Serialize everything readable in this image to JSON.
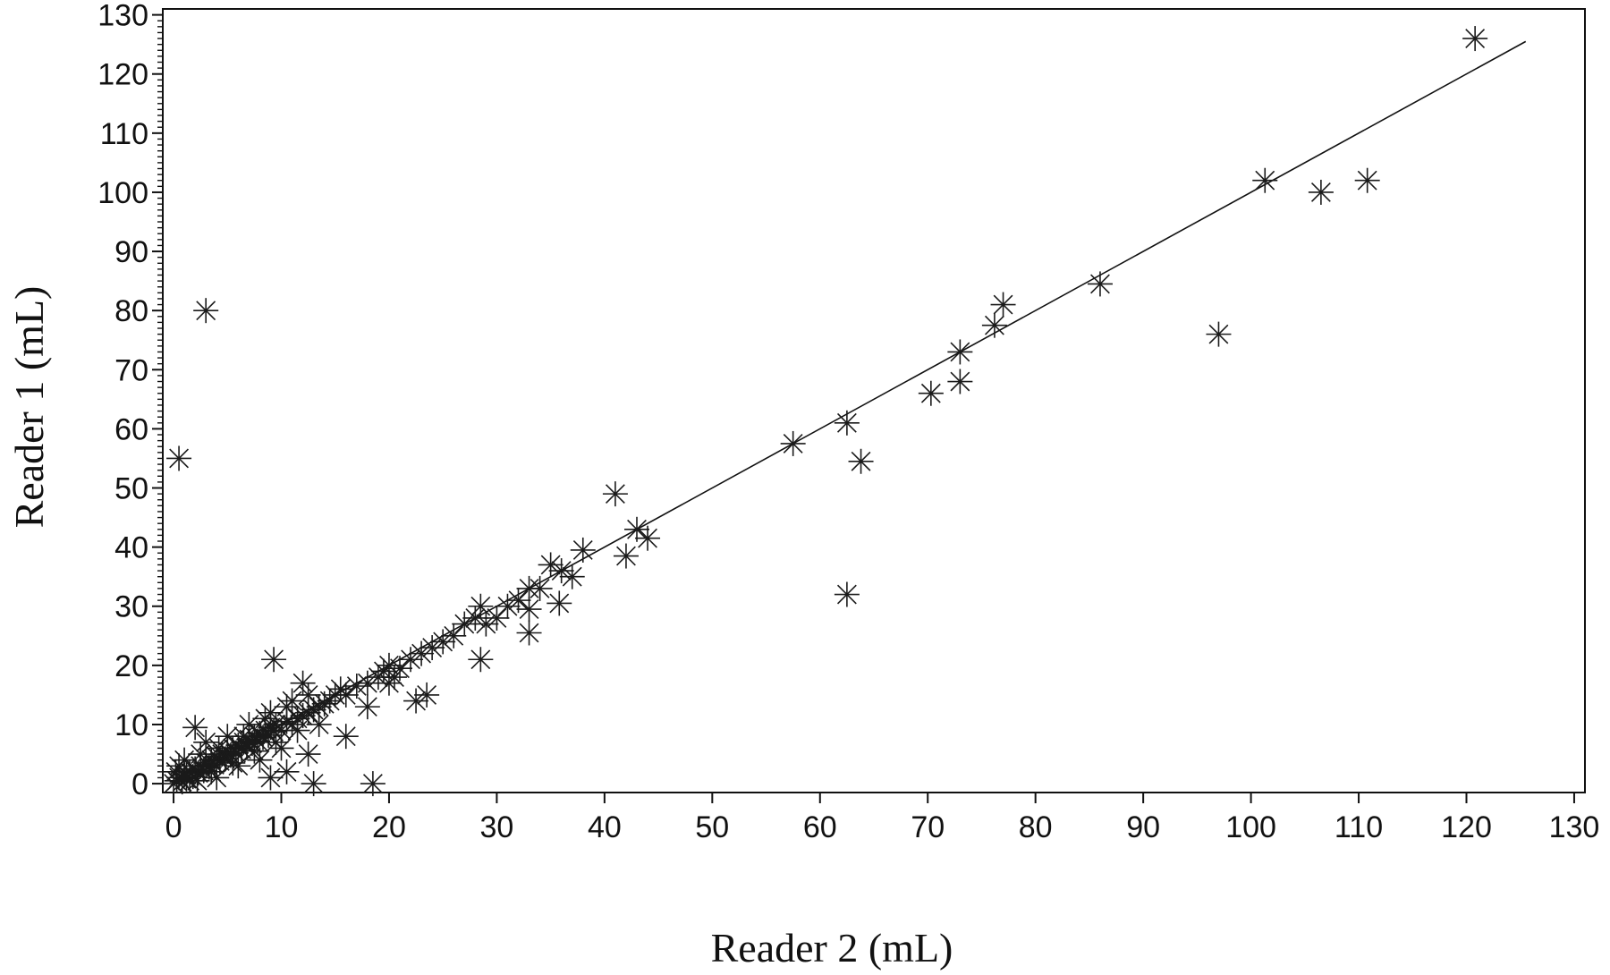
{
  "chart_data": {
    "type": "scatter",
    "title": "",
    "xlabel": "Reader 2 (mL)",
    "ylabel": "Reader 1 (mL)",
    "xlim": [
      -1,
      131
    ],
    "ylim": [
      -1.5,
      131
    ],
    "xticks": [
      "0",
      "10",
      "20",
      "30",
      "40",
      "50",
      "60",
      "70",
      "80",
      "90",
      "100",
      "110",
      "120",
      "130"
    ],
    "yticks": [
      "0",
      "10",
      "20",
      "30",
      "40",
      "50",
      "60",
      "70",
      "80",
      "90",
      "100",
      "110",
      "120",
      "130"
    ],
    "marker": "asterisk",
    "grid": false,
    "legend": "none",
    "fit_line": {
      "x": [
        0,
        125.5
      ],
      "y": [
        0,
        125.5
      ]
    },
    "series": [
      {
        "points": [
          [
            0,
            0
          ],
          [
            0.3,
            0.5
          ],
          [
            0.5,
            1
          ],
          [
            0.8,
            0.3
          ],
          [
            1,
            1.5
          ],
          [
            1.2,
            0.8
          ],
          [
            1.5,
            2
          ],
          [
            1.8,
            1.2
          ],
          [
            2,
            2.5
          ],
          [
            2.3,
            1.8
          ],
          [
            2.5,
            3
          ],
          [
            2.8,
            2.2
          ],
          [
            3,
            3.5
          ],
          [
            3.3,
            2.8
          ],
          [
            3.5,
            4
          ],
          [
            3.8,
            3.2
          ],
          [
            4,
            4.5
          ],
          [
            4.3,
            3.8
          ],
          [
            4.5,
            5
          ],
          [
            4.8,
            4.2
          ],
          [
            5,
            5.5
          ],
          [
            5.3,
            4.8
          ],
          [
            5.5,
            6
          ],
          [
            5.8,
            5.2
          ],
          [
            6,
            6.5
          ],
          [
            6.3,
            5.8
          ],
          [
            6.5,
            7
          ],
          [
            6.8,
            6.2
          ],
          [
            7,
            7.5
          ],
          [
            7.3,
            6.8
          ],
          [
            7.5,
            8
          ],
          [
            7.8,
            7.2
          ],
          [
            8,
            8.5
          ],
          [
            8.3,
            7.8
          ],
          [
            8.5,
            9
          ],
          [
            8.8,
            8.2
          ],
          [
            9,
            9.5
          ],
          [
            9.3,
            8.8
          ],
          [
            9.5,
            10
          ],
          [
            10,
            9
          ],
          [
            10.5,
            10.5
          ],
          [
            11,
            10
          ],
          [
            11.5,
            11
          ],
          [
            12,
            11.5
          ],
          [
            12.5,
            12
          ],
          [
            13,
            12.5
          ],
          [
            13.5,
            13
          ],
          [
            14,
            13.5
          ],
          [
            14.5,
            14
          ],
          [
            15,
            15
          ],
          [
            15.5,
            16
          ],
          [
            16,
            15
          ],
          [
            17,
            16.5
          ],
          [
            18,
            17
          ],
          [
            19,
            18
          ],
          [
            19.5,
            19
          ],
          [
            20,
            20
          ],
          [
            20.5,
            18
          ],
          [
            21,
            19.5
          ],
          [
            22,
            21
          ],
          [
            23,
            22
          ],
          [
            24,
            23
          ],
          [
            25,
            24
          ],
          [
            26,
            25
          ],
          [
            27,
            27
          ],
          [
            28,
            28
          ],
          [
            28.5,
            30
          ],
          [
            29,
            27
          ],
          [
            30,
            28
          ],
          [
            31,
            30
          ],
          [
            32,
            31
          ],
          [
            33,
            33
          ],
          [
            34,
            33
          ],
          [
            35,
            37
          ],
          [
            36,
            36
          ],
          [
            37,
            35
          ],
          [
            1.2,
            1.5
          ],
          [
            2.2,
            0.5
          ],
          [
            3.5,
            2
          ],
          [
            4.2,
            6
          ],
          [
            5.5,
            3.5
          ],
          [
            6.5,
            8
          ],
          [
            7.5,
            5.5
          ],
          [
            8.5,
            11
          ],
          [
            9.5,
            7
          ],
          [
            10.5,
            13
          ],
          [
            11.5,
            9
          ],
          [
            12.5,
            15
          ],
          [
            13.5,
            10
          ],
          [
            2.5,
            5
          ],
          [
            3,
            7
          ],
          [
            4,
            1
          ],
          [
            5,
            8
          ],
          [
            6,
            3
          ],
          [
            7,
            10
          ],
          [
            8,
            4
          ],
          [
            9,
            12
          ],
          [
            10,
            6
          ],
          [
            11,
            14
          ],
          [
            0.5,
            3
          ],
          [
            1,
            4
          ],
          [
            1.5,
            0.5
          ],
          [
            0.2,
            2
          ],
          [
            2,
            9.5
          ],
          [
            9.3,
            21
          ],
          [
            12,
            17
          ],
          [
            13,
            0
          ],
          [
            18.5,
            0
          ],
          [
            10.5,
            2
          ],
          [
            9,
            1
          ],
          [
            12.5,
            5
          ],
          [
            16,
            8
          ],
          [
            18,
            13
          ],
          [
            20,
            17
          ],
          [
            22.5,
            14
          ],
          [
            23.5,
            15
          ],
          [
            28.5,
            21
          ],
          [
            33,
            25.5
          ],
          [
            35.8,
            30.5
          ],
          [
            33,
            29.5
          ],
          [
            0.5,
            55
          ],
          [
            3,
            80
          ],
          [
            38,
            39.5
          ],
          [
            41,
            49
          ],
          [
            42,
            38.5
          ],
          [
            43,
            43
          ],
          [
            44,
            41.5
          ],
          [
            57.5,
            57.5
          ],
          [
            62.5,
            61
          ],
          [
            63.8,
            54.5
          ],
          [
            62.5,
            32
          ],
          [
            70.3,
            66
          ],
          [
            73,
            68
          ],
          [
            73,
            73
          ],
          [
            76.2,
            77.5
          ],
          [
            77,
            81
          ],
          [
            86,
            84.5
          ],
          [
            97,
            76
          ],
          [
            101.3,
            102
          ],
          [
            106.5,
            100
          ],
          [
            110.8,
            102
          ],
          [
            120.8,
            126
          ]
        ]
      }
    ]
  }
}
